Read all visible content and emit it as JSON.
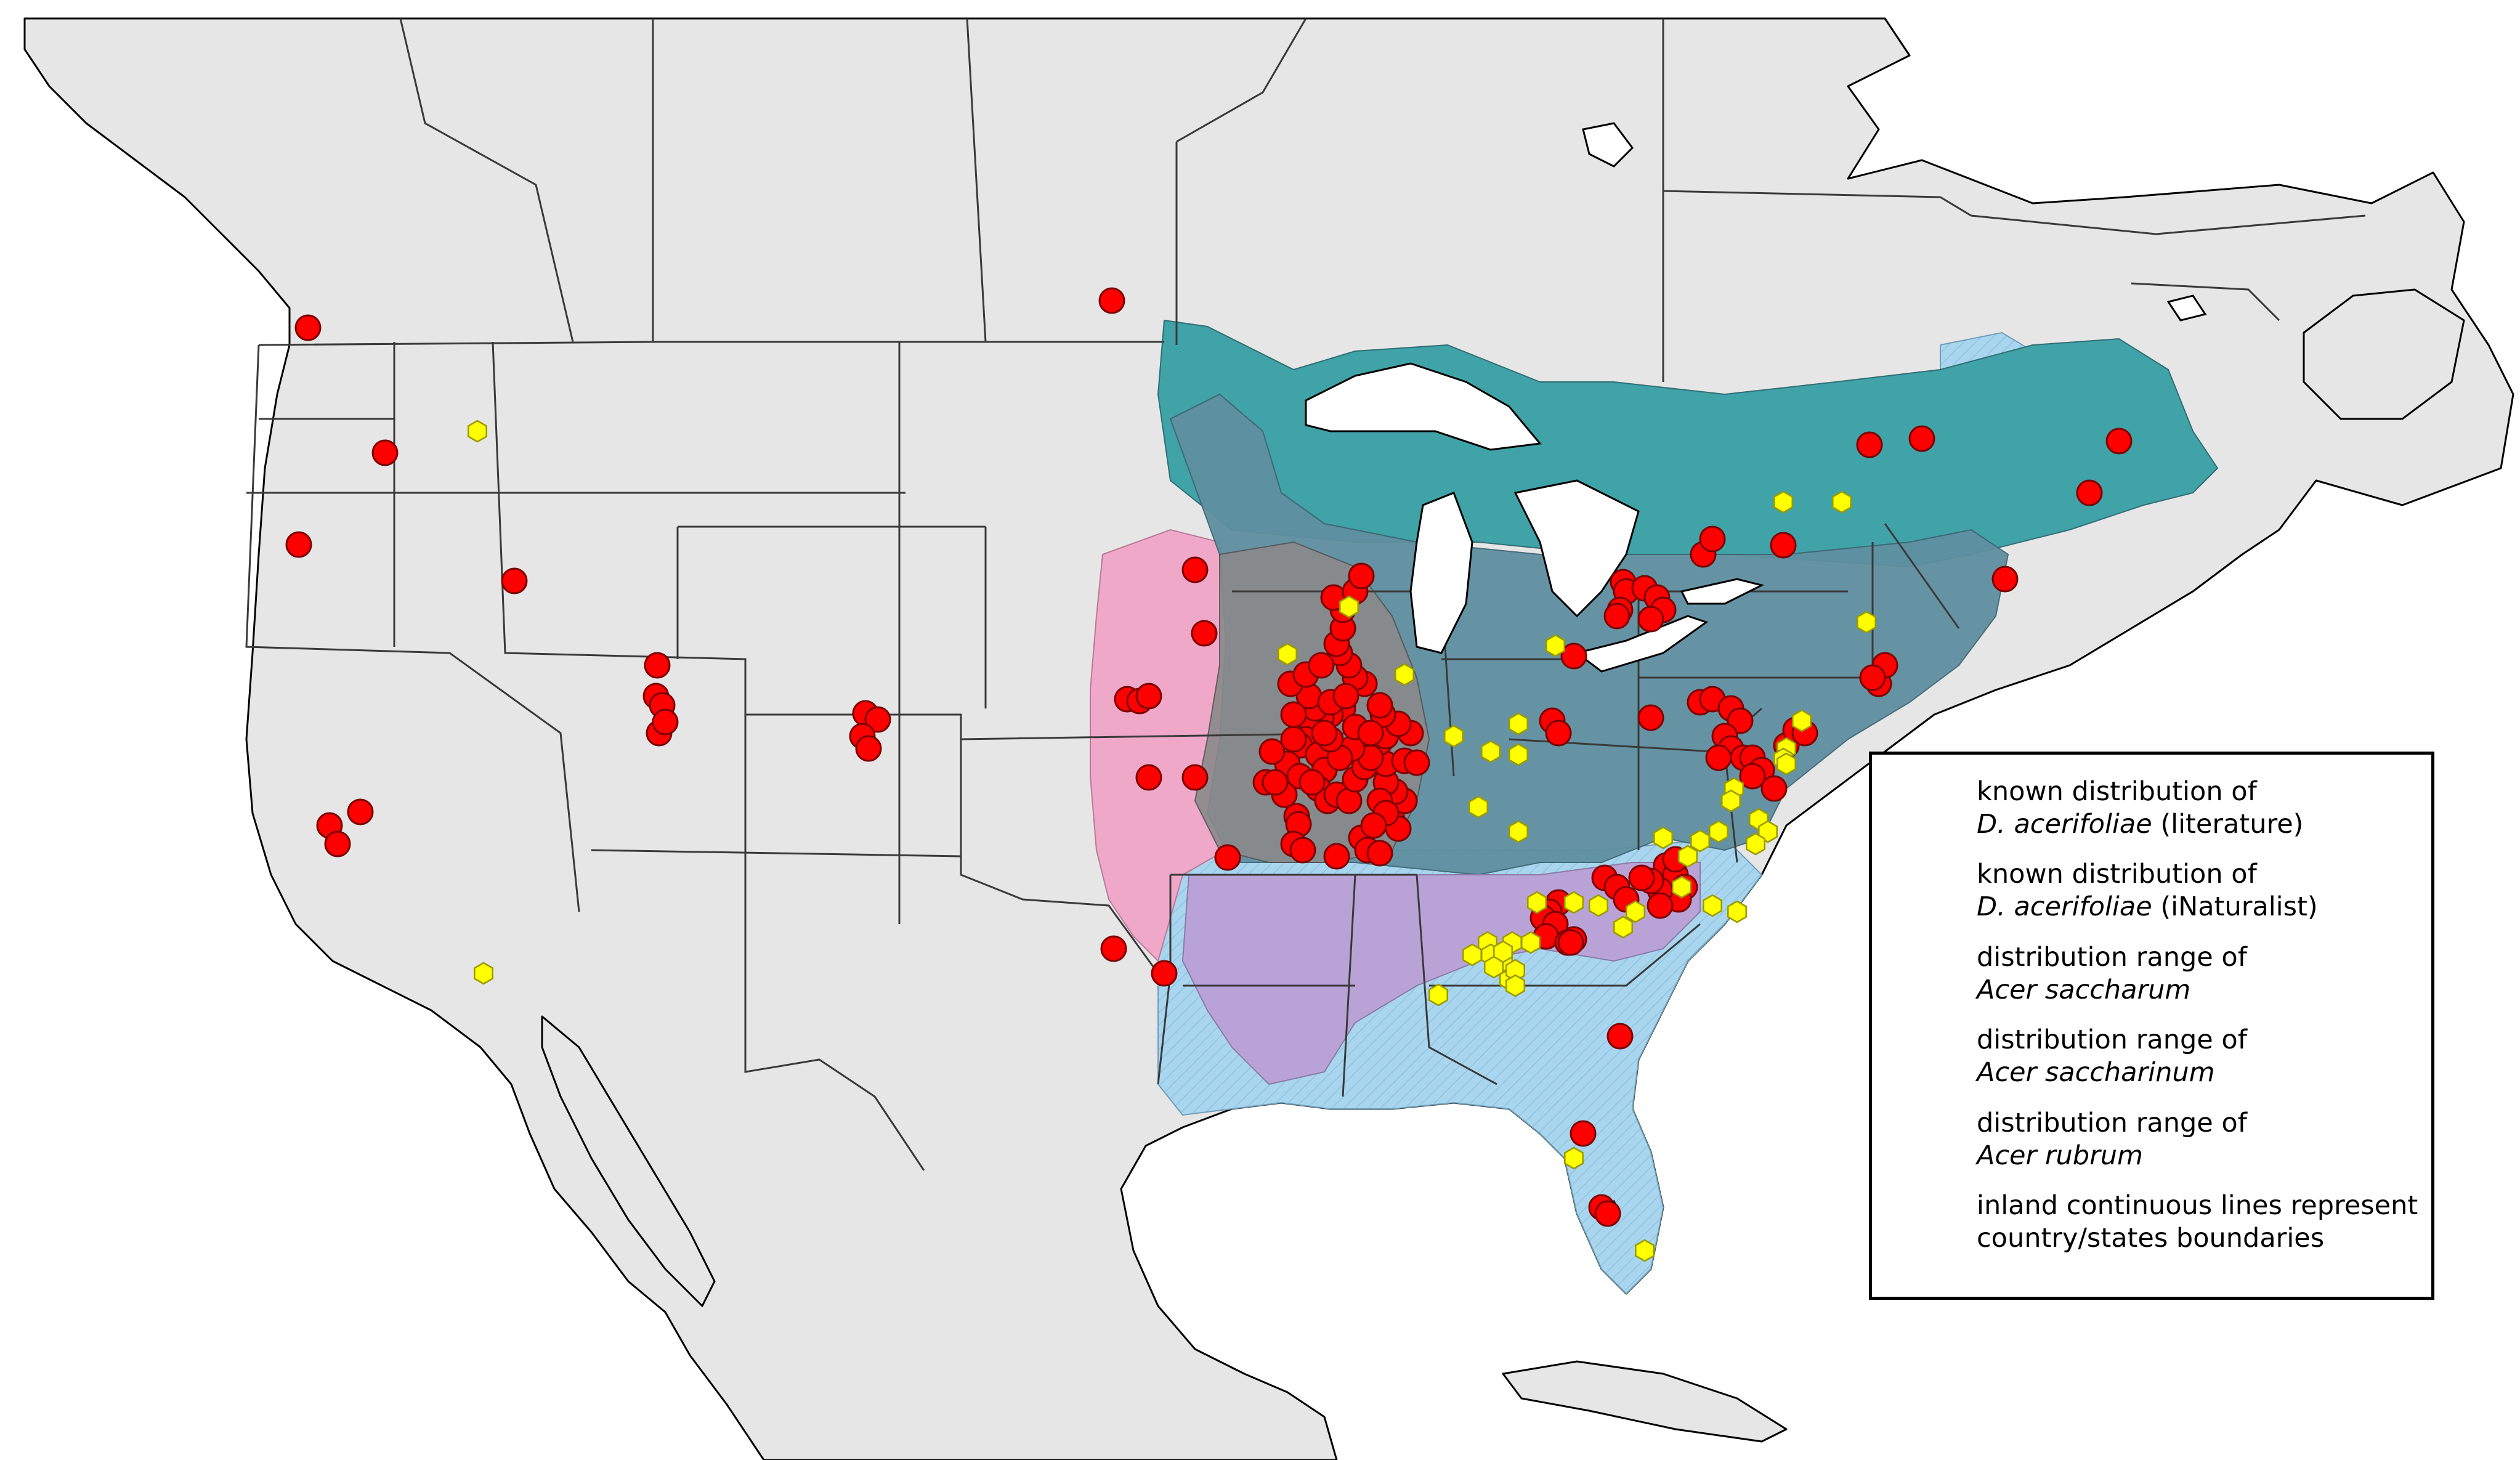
{
  "map": {
    "colors": {
      "land": "#e6e6e6",
      "water": "#ffffff",
      "acer_saccharum": "#3fa3a8",
      "acer_saccharinum": "#f0a8c8",
      "acer_rubrum": "#a9d6ee",
      "overlap_all": "#5f8fa0",
      "overlap_saccharinum_rubrum": "#b9a3d6",
      "overlap_core": "#8a8a8a",
      "literature_marker": "#ff0000",
      "inaturalist_marker": "#ffff00"
    },
    "literature_record_count": 140,
    "inaturalist_record_count": 50
  },
  "legend": {
    "items": [
      {
        "id": "lit",
        "line1": "known distribution of",
        "line2_italic": "D. acerifoliae",
        "line2_rest": " (literature)",
        "icon": "red-circle-icon"
      },
      {
        "id": "inat",
        "line1": "known distribution of",
        "line2_italic": "D. acerifoliae",
        "line2_rest": " (iNaturalist)",
        "icon": "yellow-hexagon-icon"
      },
      {
        "id": "saccharum",
        "line1": "distribution range of",
        "line2_italic": "Acer saccharum",
        "line2_rest": "",
        "color": "#8fc4a8"
      },
      {
        "id": "saccharinum",
        "line1": "distribution range of",
        "line2_italic": "Acer saccharinum",
        "line2_rest": "",
        "color": "#f0a8c8"
      },
      {
        "id": "rubrum",
        "line1": "distribution range of",
        "line2_italic": "Acer rubrum",
        "line2_rest": "",
        "color": "#b7dcf0"
      },
      {
        "id": "boundaries",
        "line1": "inland continuous lines represent",
        "line2_italic": "",
        "line2_rest": "country/states boundaries",
        "color": "#e6e6e6"
      }
    ]
  }
}
